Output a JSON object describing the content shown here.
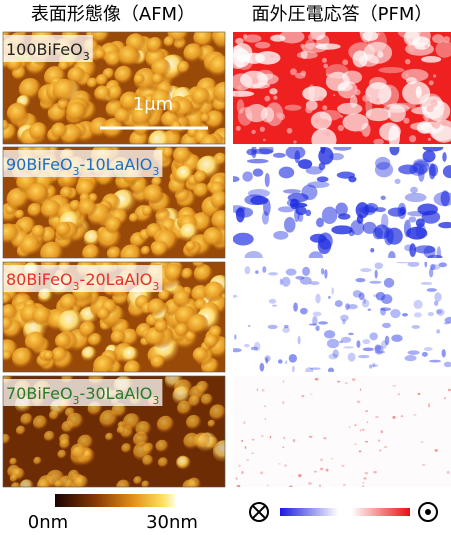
{
  "afm_header": "表面形態像（AFM）",
  "pfm_header": "面外圧電応答（PFM）",
  "panels": [
    {
      "label": [
        "100BiFeO",
        "3"
      ],
      "color": "#222222"
    },
    {
      "label": [
        "90BiFeO",
        "3",
        "-10LaAlO",
        "3"
      ],
      "color": "#1b6fc2"
    },
    {
      "label": [
        "80BiFeO",
        "3",
        "-20LaAlO",
        "3"
      ],
      "color": "#e8302a"
    },
    {
      "label": [
        "70BiFeO",
        "3",
        "-30LaAlO",
        "3"
      ],
      "color": "#2a7a2a"
    }
  ],
  "scale_bar": "1μm",
  "height_scale": {
    "min": "0nm",
    "max": "30nm"
  }
}
